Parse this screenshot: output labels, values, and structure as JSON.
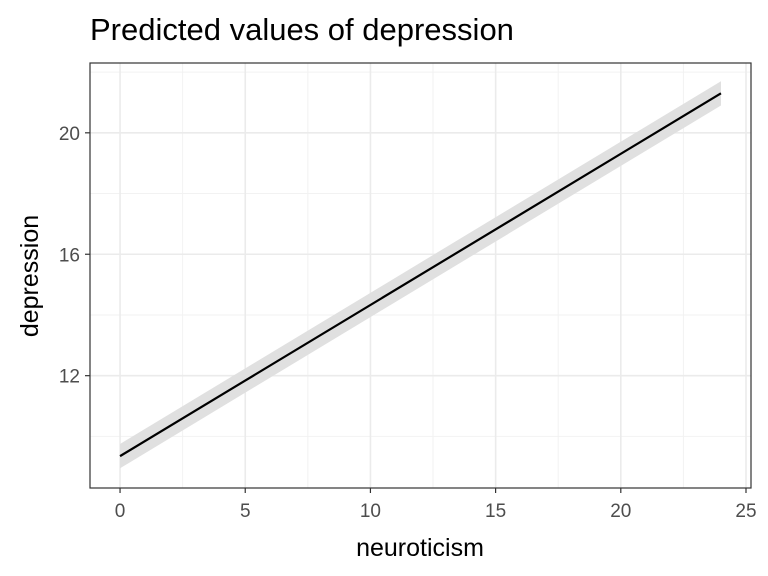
{
  "chart_data": {
    "type": "line",
    "title": "Predicted values of depression",
    "xlabel": "neuroticism",
    "ylabel": "depression",
    "xlim": [
      -1.2,
      25.2
    ],
    "ylim": [
      8.3,
      22.3
    ],
    "x_ticks": [
      0,
      5,
      10,
      15,
      20,
      25
    ],
    "y_ticks": [
      12,
      16,
      20
    ],
    "x_minor_ticks": [
      2.5,
      7.5,
      12.5,
      17.5,
      22.5
    ],
    "y_minor_ticks": [
      10,
      14,
      18,
      22
    ],
    "grid": true,
    "theme": "bw",
    "colors": {
      "line": "#000000",
      "ribbon": "#e0e0e0",
      "grid_major": "#ebebeb",
      "grid_minor": "#f2f2f2",
      "panel_border": "#333333",
      "tick_text": "#4d4d4d"
    },
    "series": [
      {
        "x": [
          0,
          24
        ],
        "y": [
          9.35,
          21.3
        ],
        "ci_lower": [
          8.95,
          20.9
        ],
        "ci_upper": [
          9.75,
          21.7
        ]
      }
    ]
  }
}
